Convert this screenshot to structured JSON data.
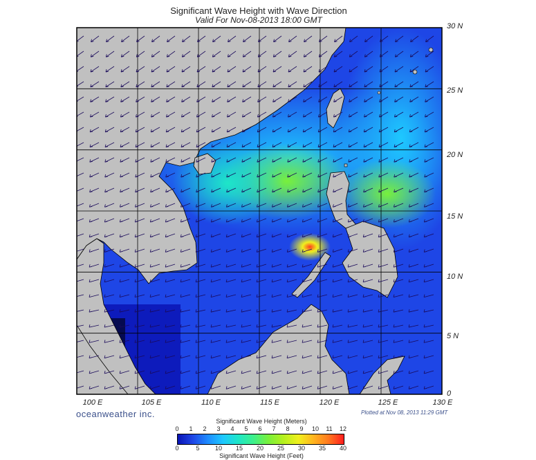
{
  "title": "Significant Wave Height with Wave Direction",
  "subtitle": "Valid For Nov-08-2013 18:00 GMT",
  "brand": "oceanweather inc.",
  "plotted": "Plotted at Nov 08, 2013 11:29 GMT",
  "lat_labels": [
    "30 N",
    "25 N",
    "20 N",
    "15 N",
    "10 N",
    "5 N",
    "0"
  ],
  "lon_labels": [
    "100 E",
    "105 E",
    "110 E",
    "115 E",
    "120 E",
    "125 E",
    "130 E"
  ],
  "colorbar": {
    "title_meters": "Significant Wave Height (Meters)",
    "title_feet": "Significant Wave Height (Feet)",
    "meters_ticks": [
      "0",
      "1",
      "2",
      "3",
      "4",
      "5",
      "6",
      "7",
      "8",
      "9",
      "10",
      "11",
      "12"
    ],
    "feet_ticks": [
      "0",
      "5",
      "10",
      "15",
      "20",
      "25",
      "30",
      "35",
      "40"
    ],
    "colors": [
      "#0a14b4",
      "#1e46e6",
      "#1e8cff",
      "#1ec8ff",
      "#1ee6c8",
      "#3cf08c",
      "#78f03c",
      "#b4f01e",
      "#f0f01e",
      "#ffb41e",
      "#ff781e",
      "#ff1e1e"
    ]
  },
  "colors": {
    "land": "#c0c0c0",
    "grid": "#000000",
    "arrow": "#1a0a5a"
  }
}
